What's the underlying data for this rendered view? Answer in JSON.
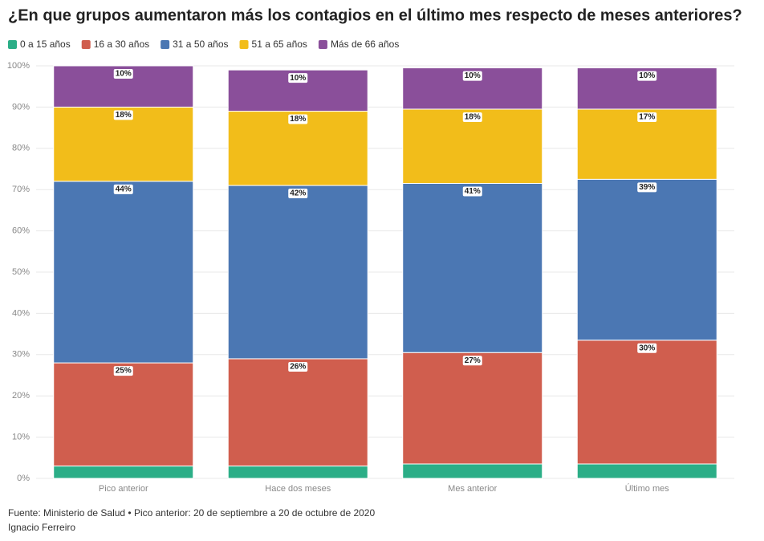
{
  "chart_data": {
    "type": "stacked_bar",
    "title": "¿En que grupos aumentaron más los contagios en el último mes respecto de meses anteriores?",
    "categories": [
      "Pico anterior",
      "Hace dos meses",
      "Mes anterior",
      "Último mes"
    ],
    "series": [
      {
        "name": "0 a 15 años",
        "color": "#2bae87",
        "values": [
          3,
          3,
          3.5,
          3.5
        ]
      },
      {
        "name": "16 a 30 años",
        "color": "#d05e4e",
        "values": [
          25,
          26,
          27,
          30
        ],
        "value_labels": [
          "25%",
          "26%",
          "27%",
          "30%"
        ]
      },
      {
        "name": "31 a 50 años",
        "color": "#4b77b3",
        "values": [
          44,
          42,
          41,
          39
        ],
        "value_labels": [
          "44%",
          "42%",
          "41%",
          "39%"
        ]
      },
      {
        "name": "51 a 65 años",
        "color": "#f2bd1a",
        "values": [
          18,
          18,
          18,
          17
        ],
        "value_labels": [
          "18%",
          "18%",
          "18%",
          "17%"
        ]
      },
      {
        "name": "Más de 66 años",
        "color": "#8a4f9a",
        "values": [
          10,
          10,
          10,
          10
        ],
        "value_labels": [
          "10%",
          "10%",
          "10%",
          "10%"
        ]
      }
    ],
    "ylim": [
      0,
      100
    ],
    "yticks": [
      {
        "value": 0,
        "label": "0%"
      },
      {
        "value": 10,
        "label": "10%"
      },
      {
        "value": 20,
        "label": "20%"
      },
      {
        "value": 30,
        "label": "30%"
      },
      {
        "value": 40,
        "label": "40%"
      },
      {
        "value": 50,
        "label": "50%"
      },
      {
        "value": 60,
        "label": "60%"
      },
      {
        "value": 70,
        "label": "70%"
      },
      {
        "value": 80,
        "label": "80%"
      },
      {
        "value": 90,
        "label": "90%"
      },
      {
        "value": 100,
        "label": "100%"
      }
    ],
    "grid": true,
    "source": "Fuente: Ministerio de Salud • Pico anterior: 20 de septiembre a 20 de octubre de 2020",
    "author": "Ignacio Ferreiro"
  }
}
